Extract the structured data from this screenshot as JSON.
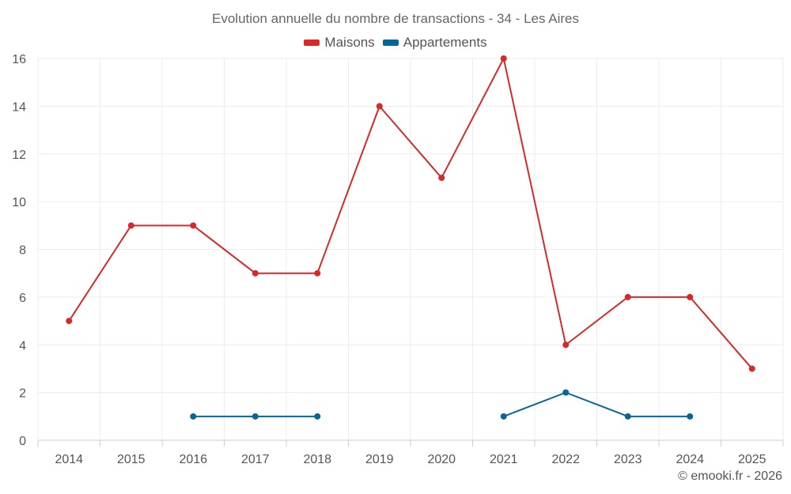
{
  "chart_data": {
    "type": "line",
    "title": "Evolution annuelle du nombre de transactions - 34 - Les Aires",
    "categories": [
      "2014",
      "2015",
      "2016",
      "2017",
      "2018",
      "2019",
      "2020",
      "2021",
      "2022",
      "2023",
      "2024",
      "2025"
    ],
    "series": [
      {
        "name": "Maisons",
        "color": "#d42a2a",
        "values": [
          5,
          9,
          9,
          7,
          7,
          14,
          11,
          16,
          4,
          6,
          6,
          3
        ]
      },
      {
        "name": "Appartements",
        "color": "#0a6597",
        "values": [
          null,
          null,
          1,
          1,
          1,
          null,
          null,
          1,
          2,
          1,
          1,
          null
        ]
      }
    ],
    "ylim": [
      0,
      16
    ],
    "yticks": [
      0,
      2,
      4,
      6,
      8,
      10,
      12,
      14,
      16
    ],
    "xlabel": "",
    "ylabel": "",
    "grid": true,
    "legend": "top-center"
  },
  "credit": "© emooki.fr - 2026"
}
